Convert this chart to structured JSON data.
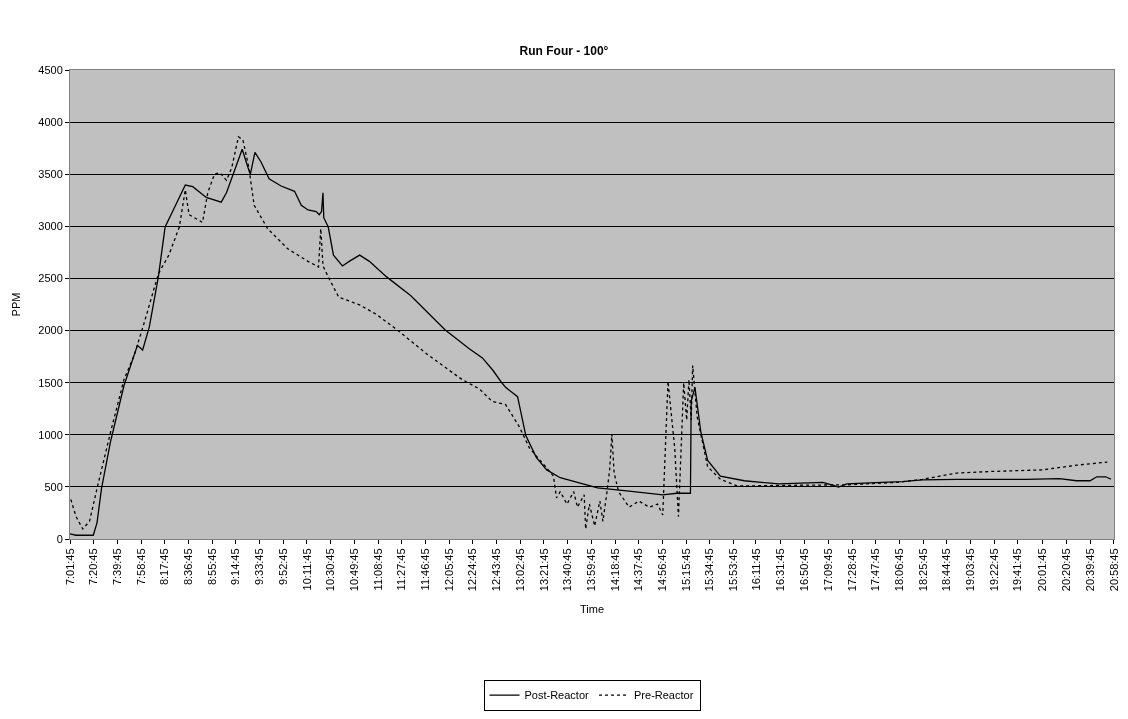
{
  "chart_data": {
    "type": "line",
    "title": "Run Four - 100°",
    "xlabel": "Time",
    "ylabel": "PPM",
    "xlim": [
      7.0292,
      20.98
    ],
    "xticks": [
      {
        "value": 7.0292,
        "label": "7:01:45"
      },
      {
        "value": 7.3458,
        "label": "7:20:45"
      },
      {
        "value": 7.6625,
        "label": "7:39:45"
      },
      {
        "value": 7.9792,
        "label": "7:58:45"
      },
      {
        "value": 8.2958,
        "label": "8:17:45"
      },
      {
        "value": 8.6125,
        "label": "8:36:45"
      },
      {
        "value": 8.9292,
        "label": "8:55:45"
      },
      {
        "value": 9.2458,
        "label": "9:14:45"
      },
      {
        "value": 9.5625,
        "label": "9:33:45"
      },
      {
        "value": 9.8792,
        "label": "9:52:45"
      },
      {
        "value": 10.1958,
        "label": "10:11:45"
      },
      {
        "value": 10.5125,
        "label": "10:30:45"
      },
      {
        "value": 10.8292,
        "label": "10:49:45"
      },
      {
        "value": 11.1458,
        "label": "11:08:45"
      },
      {
        "value": 11.4625,
        "label": "11:27:45"
      },
      {
        "value": 11.7792,
        "label": "11:46:45"
      },
      {
        "value": 12.0958,
        "label": "12:05:45"
      },
      {
        "value": 12.4125,
        "label": "12:24:45"
      },
      {
        "value": 12.7292,
        "label": "12:43:45"
      },
      {
        "value": 13.0458,
        "label": "13:02:45"
      },
      {
        "value": 13.3625,
        "label": "13:21:45"
      },
      {
        "value": 13.6792,
        "label": "13:40:45"
      },
      {
        "value": 13.9958,
        "label": "13:59:45"
      },
      {
        "value": 14.3125,
        "label": "14:18:45"
      },
      {
        "value": 14.6292,
        "label": "14:37:45"
      },
      {
        "value": 14.9458,
        "label": "14:56:45"
      },
      {
        "value": 15.2625,
        "label": "15:15:45"
      },
      {
        "value": 15.5792,
        "label": "15:34:45"
      },
      {
        "value": 15.8958,
        "label": "15:53:45"
      },
      {
        "value": 16.1958,
        "label": "16:11:45"
      },
      {
        "value": 16.5292,
        "label": "16:31:45"
      },
      {
        "value": 16.8458,
        "label": "16:50:45"
      },
      {
        "value": 17.1625,
        "label": "17:09:45"
      },
      {
        "value": 17.4792,
        "label": "17:28:45"
      },
      {
        "value": 17.7958,
        "label": "17:47:45"
      },
      {
        "value": 18.1125,
        "label": "18:06:45"
      },
      {
        "value": 18.4292,
        "label": "18:25:45"
      },
      {
        "value": 18.7458,
        "label": "18:44:45"
      },
      {
        "value": 19.0625,
        "label": "19:03:45"
      },
      {
        "value": 19.3792,
        "label": "19:22:45"
      },
      {
        "value": 19.6958,
        "label": "19:41:45"
      },
      {
        "value": 20.0292,
        "label": "20:01:45"
      },
      {
        "value": 20.3458,
        "label": "20:20:45"
      },
      {
        "value": 20.6625,
        "label": "20:39:45"
      },
      {
        "value": 20.9792,
        "label": "20:58:45"
      }
    ],
    "ylim": [
      0,
      4500
    ],
    "yticks": [
      0,
      500,
      1000,
      1500,
      2000,
      2500,
      3000,
      3500,
      4000,
      4500
    ],
    "grid": "y",
    "legend": "bottom",
    "series": [
      {
        "name": "Post-Reactor",
        "color": "#000000",
        "line_style": "solid",
        "x": [
          7.03,
          7.11,
          7.34,
          7.39,
          7.45,
          7.57,
          7.75,
          7.93,
          8.0,
          8.09,
          8.21,
          8.3,
          8.44,
          8.57,
          8.67,
          8.85,
          9.05,
          9.12,
          9.24,
          9.33,
          9.41,
          9.44,
          9.5,
          9.58,
          9.69,
          9.85,
          10.03,
          10.12,
          10.21,
          10.32,
          10.36,
          10.39,
          10.41,
          10.42,
          10.48,
          10.55,
          10.67,
          10.76,
          10.9,
          11.03,
          11.26,
          11.58,
          12.04,
          12.36,
          12.54,
          12.68,
          12.8,
          12.85,
          13.01,
          13.12,
          13.26,
          13.4,
          13.58,
          13.81,
          14.08,
          14.5,
          14.95,
          15.14,
          15.32,
          15.33,
          15.38,
          15.46,
          15.55,
          15.72,
          16.04,
          16.5,
          17.09,
          17.3,
          17.41,
          17.87,
          18.15,
          18.42,
          18.88,
          19.34,
          19.8,
          20.25,
          20.48,
          20.66,
          20.75,
          20.87,
          20.94
        ],
        "values": [
          50,
          36,
          36,
          155,
          484,
          932,
          1470,
          1858,
          1813,
          2037,
          2515,
          2993,
          3202,
          3396,
          3381,
          3277,
          3232,
          3322,
          3560,
          3740,
          3560,
          3501,
          3710,
          3620,
          3456,
          3387,
          3336,
          3202,
          3157,
          3142,
          3112,
          3142,
          3322,
          3083,
          2993,
          2724,
          2620,
          2664,
          2724,
          2664,
          2515,
          2336,
          2007,
          1828,
          1738,
          1619,
          1499,
          1455,
          1365,
          992,
          783,
          663,
          588,
          544,
          490,
          460,
          424,
          439,
          439,
          1320,
          1455,
          1022,
          753,
          603,
          559,
          529,
          544,
          499,
          529,
          544,
          550,
          568,
          573,
          573,
          573,
          580,
          559,
          559,
          597,
          597,
          573
        ]
      },
      {
        "name": "Pre-Reactor",
        "color": "#000000",
        "line_style": "dotted",
        "x": [
          7.04,
          7.11,
          7.2,
          7.29,
          7.39,
          7.57,
          7.75,
          7.89,
          8.03,
          8.21,
          8.35,
          8.49,
          8.57,
          8.62,
          8.8,
          8.87,
          8.96,
          9.03,
          9.12,
          9.19,
          9.28,
          9.34,
          9.42,
          9.49,
          9.67,
          9.94,
          10.21,
          10.35,
          10.38,
          10.41,
          10.48,
          10.62,
          10.9,
          11.12,
          11.4,
          11.81,
          12.27,
          12.5,
          12.67,
          12.85,
          13.03,
          13.17,
          13.35,
          13.49,
          13.53,
          13.58,
          13.67,
          13.76,
          13.81,
          13.9,
          13.92,
          13.97,
          14.04,
          14.11,
          14.15,
          14.2,
          14.24,
          14.27,
          14.3,
          14.36,
          14.5,
          14.63,
          14.77,
          14.88,
          14.95,
          15.02,
          15.11,
          15.16,
          15.23,
          15.27,
          15.3,
          15.33,
          15.35,
          15.41,
          15.55,
          15.72,
          15.95,
          16.5,
          17.41,
          18.1,
          18.42,
          18.88,
          19.34,
          20.02,
          20.48,
          20.89
        ],
        "values": [
          379,
          215,
          96,
          170,
          484,
          1022,
          1529,
          1768,
          2097,
          2545,
          2724,
          2993,
          3351,
          3112,
          3038,
          3322,
          3501,
          3516,
          3441,
          3560,
          3859,
          3829,
          3560,
          3202,
          2978,
          2784,
          2664,
          2610,
          2978,
          2620,
          2515,
          2321,
          2246,
          2157,
          2007,
          1768,
          1529,
          1440,
          1320,
          1290,
          1081,
          872,
          723,
          603,
          394,
          454,
          335,
          454,
          305,
          424,
          96,
          335,
          125,
          364,
          170,
          424,
          663,
          1007,
          633,
          454,
          305,
          364,
          305,
          335,
          230,
          1514,
          872,
          215,
          1499,
          1141,
          1529,
          1141,
          1664,
          1171,
          693,
          573,
          508,
          514,
          520,
          544,
          573,
          633,
          648,
          663,
          708,
          738
        ]
      }
    ]
  }
}
